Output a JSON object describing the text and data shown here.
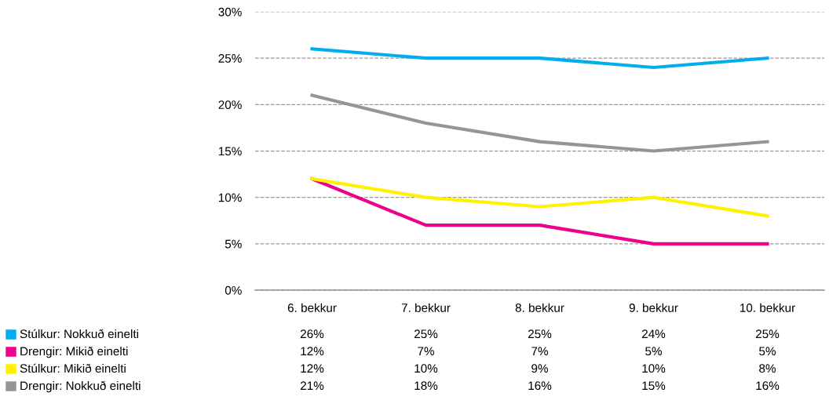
{
  "chart_data": {
    "type": "line",
    "categories": [
      "6. bekkur",
      "7. bekkur",
      "8. bekkur",
      "9. bekkur",
      "10. bekkur"
    ],
    "series": [
      {
        "name": "Stúlkur: Nokkuð einelti",
        "color": "#00aeef",
        "values": [
          26,
          25,
          25,
          24,
          25
        ],
        "value_labels": [
          "26%",
          "25%",
          "25%",
          "24%",
          "25%"
        ]
      },
      {
        "name": "Drengir: Mikið einelti",
        "color": "#ec008c",
        "values": [
          12,
          7,
          7,
          5,
          5
        ],
        "value_labels": [
          "12%",
          "7%",
          "7%",
          "5%",
          "5%"
        ]
      },
      {
        "name": "Stúlkur: Mikið einelti",
        "color": "#fff200",
        "values": [
          12,
          10,
          9,
          10,
          8
        ],
        "value_labels": [
          "12%",
          "10%",
          "9%",
          "10%",
          "8%"
        ]
      },
      {
        "name": "Drengir: Nokkuð einelti",
        "color": "#939598",
        "values": [
          21,
          18,
          16,
          15,
          16
        ],
        "value_labels": [
          "21%",
          "18%",
          "16%",
          "15%",
          "16%"
        ]
      }
    ],
    "ylim": [
      0,
      30
    ],
    "yticks": [
      {
        "value": 0,
        "label": "0%"
      },
      {
        "value": 5,
        "label": "5%"
      },
      {
        "value": 10,
        "label": "10%"
      },
      {
        "value": 15,
        "label": "15%"
      },
      {
        "value": 20,
        "label": "20%"
      },
      {
        "value": 25,
        "label": "25%"
      },
      {
        "value": 30,
        "label": "30%"
      }
    ],
    "grid": "y",
    "legend": "bottom",
    "marker": "none",
    "line_style": "solid"
  }
}
